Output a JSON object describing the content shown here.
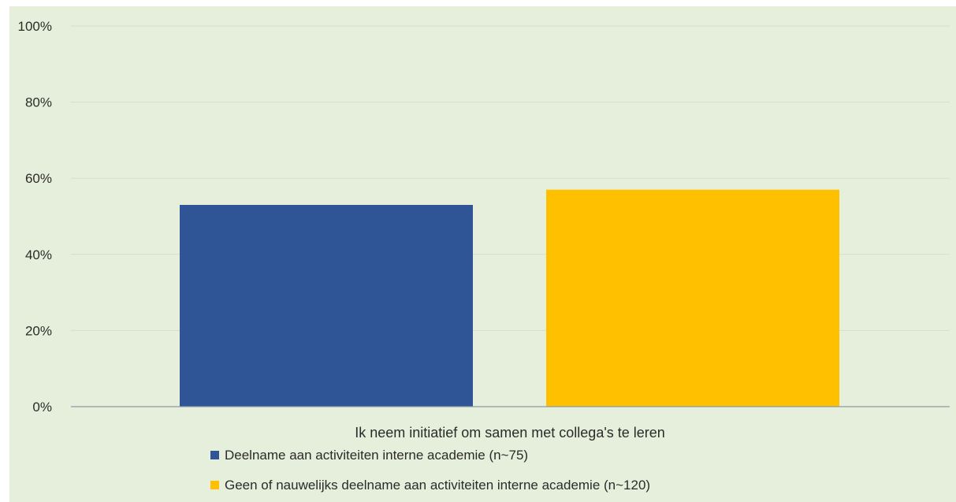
{
  "chart_data": {
    "type": "bar",
    "categories": [
      "Ik neem initiatief om samen met collega's te leren"
    ],
    "series": [
      {
        "name": "Deelname aan activiteiten interne academie (n~75)",
        "values": [
          53
        ],
        "color": "#2f5597"
      },
      {
        "name": "Geen of nauwelijks deelname aan activiteiten interne academie (n~120)",
        "values": [
          57
        ],
        "color": "#ffc000"
      }
    ],
    "y_unit": "%",
    "ylim": [
      0,
      100
    ],
    "y_ticks": [
      0,
      20,
      40,
      60,
      80,
      100
    ],
    "y_tick_labels": [
      "0%",
      "20%",
      "40%",
      "60%",
      "80%",
      "100%"
    ],
    "grid": true,
    "legend_position": "bottom-left",
    "background_color": "#e6efdb"
  }
}
